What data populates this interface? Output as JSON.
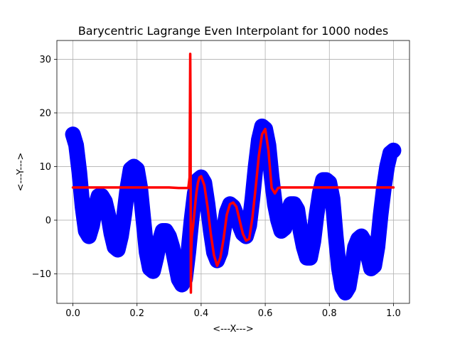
{
  "chart_data": {
    "type": "line",
    "title": "Barycentric Lagrange Even Interpolant for 1000 nodes",
    "xlabel": "<---X--->",
    "ylabel": "<---Y--->",
    "xlim": [
      -0.05,
      1.05
    ],
    "ylim": [
      -15.5,
      33.5
    ],
    "xticks": [
      0.0,
      0.2,
      0.4,
      0.6,
      0.8,
      1.0
    ],
    "xtick_labels": [
      "0.0",
      "0.2",
      "0.4",
      "0.6",
      "0.8",
      "1.0"
    ],
    "yticks": [
      -10,
      0,
      10,
      20,
      30
    ],
    "ytick_labels": [
      "−10",
      "0",
      "10",
      "20",
      "30"
    ],
    "grid": true,
    "series": [
      {
        "color": "#0000ff",
        "style": "thick-markers",
        "x": [
          0.0,
          0.01,
          0.02,
          0.03,
          0.04,
          0.05,
          0.06,
          0.07,
          0.08,
          0.09,
          0.1,
          0.11,
          0.12,
          0.13,
          0.14,
          0.15,
          0.16,
          0.17,
          0.18,
          0.19,
          0.2,
          0.21,
          0.22,
          0.23,
          0.24,
          0.25,
          0.26,
          0.27,
          0.28,
          0.29,
          0.3,
          0.31,
          0.32,
          0.33,
          0.34,
          0.35,
          0.36,
          0.37,
          0.38,
          0.39,
          0.4,
          0.41,
          0.42,
          0.43,
          0.44,
          0.45,
          0.46,
          0.47,
          0.48,
          0.49,
          0.5,
          0.51,
          0.52,
          0.53,
          0.54,
          0.55,
          0.56,
          0.57,
          0.58,
          0.59,
          0.6,
          0.61,
          0.62,
          0.63,
          0.64,
          0.65,
          0.66,
          0.67,
          0.68,
          0.69,
          0.7,
          0.71,
          0.72,
          0.73,
          0.74,
          0.75,
          0.76,
          0.77,
          0.78,
          0.79,
          0.8,
          0.81,
          0.82,
          0.83,
          0.84,
          0.85,
          0.86,
          0.87,
          0.88,
          0.89,
          0.9,
          0.91,
          0.92,
          0.93,
          0.94,
          0.95,
          0.96,
          0.97,
          0.98,
          0.99,
          1.0
        ],
        "y": [
          16.0,
          14.0,
          9.0,
          2.5,
          -2.0,
          -3.0,
          -1.0,
          2.5,
          4.5,
          4.5,
          3.5,
          1.0,
          -2.5,
          -5.0,
          -5.5,
          -3.0,
          1.0,
          6.0,
          9.5,
          10.0,
          9.5,
          6.0,
          0.0,
          -6.0,
          -9.0,
          -9.5,
          -7.0,
          -4.0,
          -2.0,
          -2.0,
          -3.0,
          -5.0,
          -8.0,
          -11.0,
          -12.0,
          -11.0,
          -6.0,
          0.0,
          5.0,
          7.5,
          8.0,
          7.0,
          3.0,
          -2.0,
          -6.0,
          -7.5,
          -6.0,
          -2.0,
          1.5,
          3.0,
          2.5,
          1.0,
          -1.0,
          -2.5,
          -3.0,
          -1.0,
          4.0,
          10.0,
          15.0,
          17.5,
          17.0,
          14.0,
          8.0,
          3.0,
          0.0,
          -2.0,
          -1.5,
          1.0,
          3.0,
          3.0,
          2.0,
          -2.0,
          -5.0,
          -7.0,
          -7.0,
          -4.0,
          1.0,
          5.0,
          7.5,
          7.5,
          7.0,
          4.0,
          -3.0,
          -9.0,
          -12.5,
          -13.5,
          -12.5,
          -9.0,
          -5.0,
          -3.5,
          -3.0,
          -4.0,
          -6.5,
          -9.0,
          -8.5,
          -5.0,
          1.0,
          6.0,
          10.0,
          12.5,
          13.0
        ]
      },
      {
        "color": "#ff0000",
        "style": "line",
        "x": [
          0.0,
          0.05,
          0.1,
          0.15,
          0.2,
          0.25,
          0.3,
          0.33,
          0.35,
          0.36,
          0.364,
          0.366,
          0.367,
          0.3675,
          0.368,
          0.3685,
          0.369,
          0.371,
          0.375,
          0.38,
          0.385,
          0.39,
          0.395,
          0.4,
          0.41,
          0.42,
          0.43,
          0.44,
          0.45,
          0.46,
          0.47,
          0.48,
          0.49,
          0.5,
          0.51,
          0.52,
          0.53,
          0.54,
          0.55,
          0.56,
          0.57,
          0.58,
          0.59,
          0.6,
          0.61,
          0.62,
          0.63,
          0.635,
          0.64,
          0.65,
          0.7,
          0.8,
          0.9,
          1.0
        ],
        "y": [
          6.1,
          6.1,
          6.1,
          6.1,
          6.1,
          6.1,
          6.1,
          6.0,
          6.0,
          6.0,
          8.0,
          31.0,
          20.0,
          0.0,
          -13.5,
          -10.0,
          -6.0,
          -3.0,
          -1.0,
          2.0,
          5.0,
          7.0,
          8.0,
          8.2,
          6.5,
          2.5,
          -2.5,
          -6.5,
          -8.5,
          -7.0,
          -3.5,
          1.0,
          3.0,
          3.3,
          2.5,
          0.0,
          -2.5,
          -3.8,
          -3.5,
          0.5,
          6.0,
          12.0,
          16.0,
          17.0,
          13.0,
          6.0,
          5.0,
          5.5,
          6.0,
          6.1,
          6.1,
          6.1,
          6.1,
          6.1
        ]
      }
    ]
  }
}
